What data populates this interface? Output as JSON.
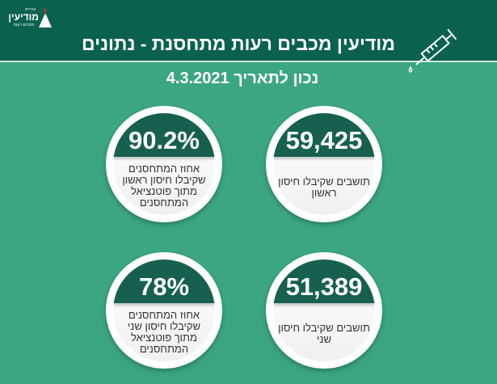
{
  "header": {
    "title": "מודיעין מכבים רעות מתחסנת - נתונים",
    "date": "נכון לתאריך 4.3.2021",
    "logo": {
      "text_top": "עיריית",
      "text_main": "מודיעין",
      "text_sub": "מכבים רעות"
    },
    "icon": "syringe-icon"
  },
  "colors": {
    "header": "#0b6150",
    "background": "#3ba67f",
    "cap": "#17604f"
  },
  "stats": [
    {
      "value": "59,425",
      "label": "תושבים שקיבלו חיסון ראשון"
    },
    {
      "value": "90.2%",
      "label": "אחוז המתחסנים שקיבלו חיסון ראשון מתוך פוטנציאל המתחסנים"
    },
    {
      "value": "51,389",
      "label": "תושבים שקיבלו חיסון שני"
    },
    {
      "value": "78%",
      "label": "אחוז המתחסנים שקיבלו חיסון שני מתוך פוטנציאל המתחסנים"
    }
  ]
}
